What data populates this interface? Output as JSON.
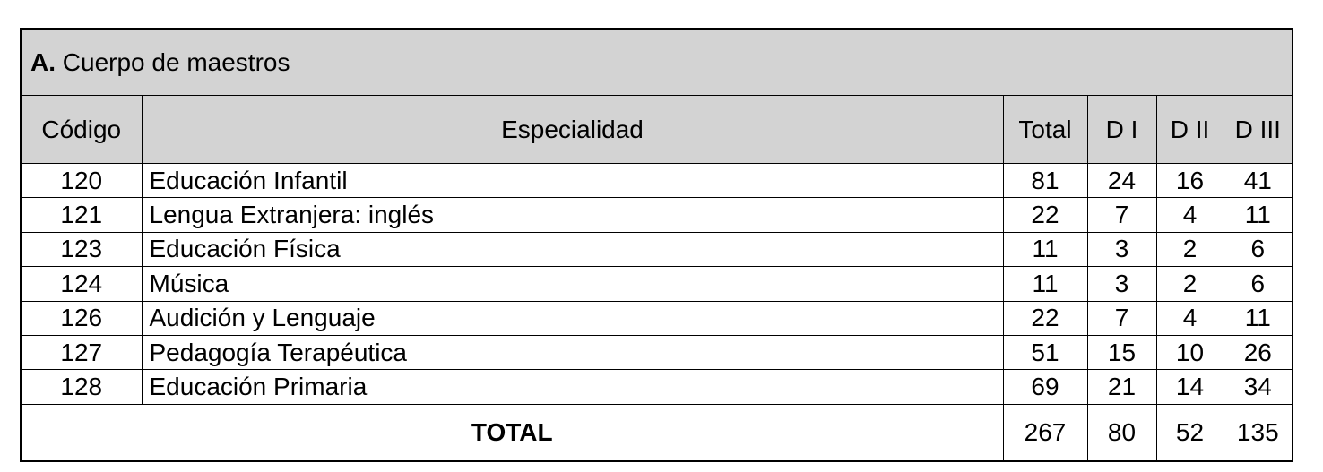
{
  "title": {
    "label": "A.",
    "text": "Cuerpo de maestros"
  },
  "table": {
    "columns": [
      "Código",
      "Especialidad",
      "Total",
      "D I",
      "D II",
      "D III"
    ],
    "rows": [
      [
        120,
        "Educación Infantil",
        81,
        24,
        16,
        41
      ],
      [
        121,
        "Lengua Extranjera: inglés",
        22,
        7,
        4,
        11
      ],
      [
        123,
        "Educación Física",
        11,
        3,
        2,
        6
      ],
      [
        124,
        "Música",
        11,
        3,
        2,
        6
      ],
      [
        126,
        "Audición y Lenguaje",
        22,
        7,
        4,
        11
      ],
      [
        127,
        "Pedagogía Terapéutica",
        51,
        15,
        10,
        26
      ],
      [
        128,
        "Educación Primaria",
        69,
        21,
        14,
        34
      ]
    ],
    "total": {
      "label": "TOTAL",
      "values": [
        267,
        80,
        52,
        135
      ]
    }
  }
}
